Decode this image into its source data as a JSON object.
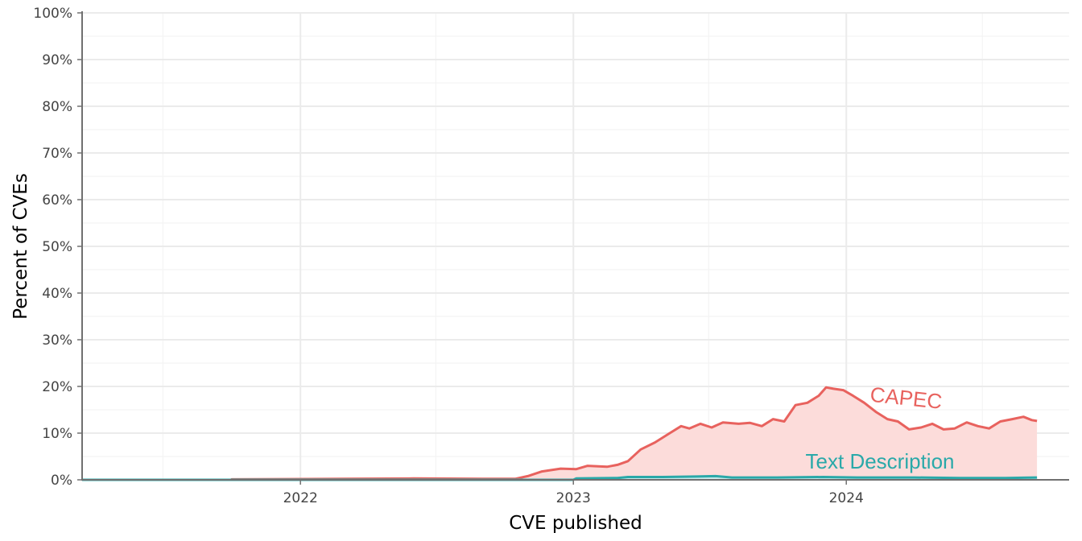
{
  "chart_data": {
    "type": "area",
    "xlabel": "CVE published",
    "ylabel": "Percent of CVEs",
    "xlim": [
      "2021-03-15",
      "2024-10-25"
    ],
    "ylim": [
      0,
      100
    ],
    "grid": true,
    "legend": "none (series labeled directly on plot)",
    "y_ticks": [
      0,
      10,
      20,
      30,
      40,
      50,
      60,
      70,
      80,
      90,
      100
    ],
    "y_tick_labels": [
      "0%",
      "10%",
      "20%",
      "30%",
      "40%",
      "50%",
      "60%",
      "70%",
      "80%",
      "90%",
      "100%"
    ],
    "x_ticks": [
      "2022-01-01",
      "2023-01-01",
      "2024-01-01"
    ],
    "x_tick_labels": [
      "2022",
      "2023",
      "2024"
    ],
    "series": [
      {
        "name": "CAPEC",
        "color": "#e8625e",
        "fill": "#fcdcda",
        "label_position": {
          "x": "2024-03-20",
          "y": 16
        },
        "points": [
          [
            "2021-03-15",
            0
          ],
          [
            "2021-10-01",
            0
          ],
          [
            "2021-10-01",
            0.1
          ],
          [
            "2022-03-01",
            0.2
          ],
          [
            "2022-06-01",
            0.3
          ],
          [
            "2022-09-01",
            0.2
          ],
          [
            "2022-10-15",
            0.2
          ],
          [
            "2022-11-01",
            0.8
          ],
          [
            "2022-11-20",
            1.8
          ],
          [
            "2022-12-15",
            2.4
          ],
          [
            "2023-01-05",
            2.3
          ],
          [
            "2023-01-20",
            3.0
          ],
          [
            "2023-02-15",
            2.8
          ],
          [
            "2023-03-01",
            3.2
          ],
          [
            "2023-03-15",
            4.0
          ],
          [
            "2023-04-01",
            6.5
          ],
          [
            "2023-04-20",
            8.0
          ],
          [
            "2023-05-10",
            10.0
          ],
          [
            "2023-05-25",
            11.5
          ],
          [
            "2023-06-05",
            11.0
          ],
          [
            "2023-06-20",
            12.0
          ],
          [
            "2023-07-05",
            11.2
          ],
          [
            "2023-07-20",
            12.3
          ],
          [
            "2023-08-10",
            12.0
          ],
          [
            "2023-08-25",
            12.2
          ],
          [
            "2023-09-10",
            11.5
          ],
          [
            "2023-09-25",
            13.0
          ],
          [
            "2023-10-10",
            12.5
          ],
          [
            "2023-10-25",
            16.0
          ],
          [
            "2023-11-10",
            16.5
          ],
          [
            "2023-11-25",
            18.0
          ],
          [
            "2023-12-05",
            19.8
          ],
          [
            "2023-12-15",
            19.5
          ],
          [
            "2023-12-28",
            19.2
          ],
          [
            "2024-01-10",
            18.0
          ],
          [
            "2024-01-25",
            16.5
          ],
          [
            "2024-02-10",
            14.5
          ],
          [
            "2024-02-25",
            13.0
          ],
          [
            "2024-03-10",
            12.5
          ],
          [
            "2024-03-25",
            10.8
          ],
          [
            "2024-04-10",
            11.2
          ],
          [
            "2024-04-25",
            12.0
          ],
          [
            "2024-05-10",
            10.8
          ],
          [
            "2024-05-25",
            11.0
          ],
          [
            "2024-06-10",
            12.3
          ],
          [
            "2024-06-25",
            11.5
          ],
          [
            "2024-07-10",
            11.0
          ],
          [
            "2024-07-25",
            12.5
          ],
          [
            "2024-08-10",
            13.0
          ],
          [
            "2024-08-25",
            13.5
          ],
          [
            "2024-09-05",
            12.8
          ],
          [
            "2024-09-12",
            12.6
          ]
        ]
      },
      {
        "name": "Text Description",
        "color": "#2aa9a9",
        "fill": "#c5eaea",
        "label_position": {
          "x": "2024-02-15",
          "y": 2.4
        },
        "points": [
          [
            "2021-03-15",
            0
          ],
          [
            "2023-01-01",
            0
          ],
          [
            "2023-01-05",
            0.3
          ],
          [
            "2023-03-01",
            0.4
          ],
          [
            "2023-03-15",
            0.6
          ],
          [
            "2023-05-01",
            0.6
          ],
          [
            "2023-06-15",
            0.7
          ],
          [
            "2023-07-10",
            0.8
          ],
          [
            "2023-08-01",
            0.5
          ],
          [
            "2023-10-01",
            0.5
          ],
          [
            "2023-12-01",
            0.6
          ],
          [
            "2024-01-15",
            0.5
          ],
          [
            "2024-04-01",
            0.5
          ],
          [
            "2024-06-01",
            0.4
          ],
          [
            "2024-08-01",
            0.4
          ],
          [
            "2024-09-12",
            0.5
          ]
        ]
      }
    ]
  }
}
